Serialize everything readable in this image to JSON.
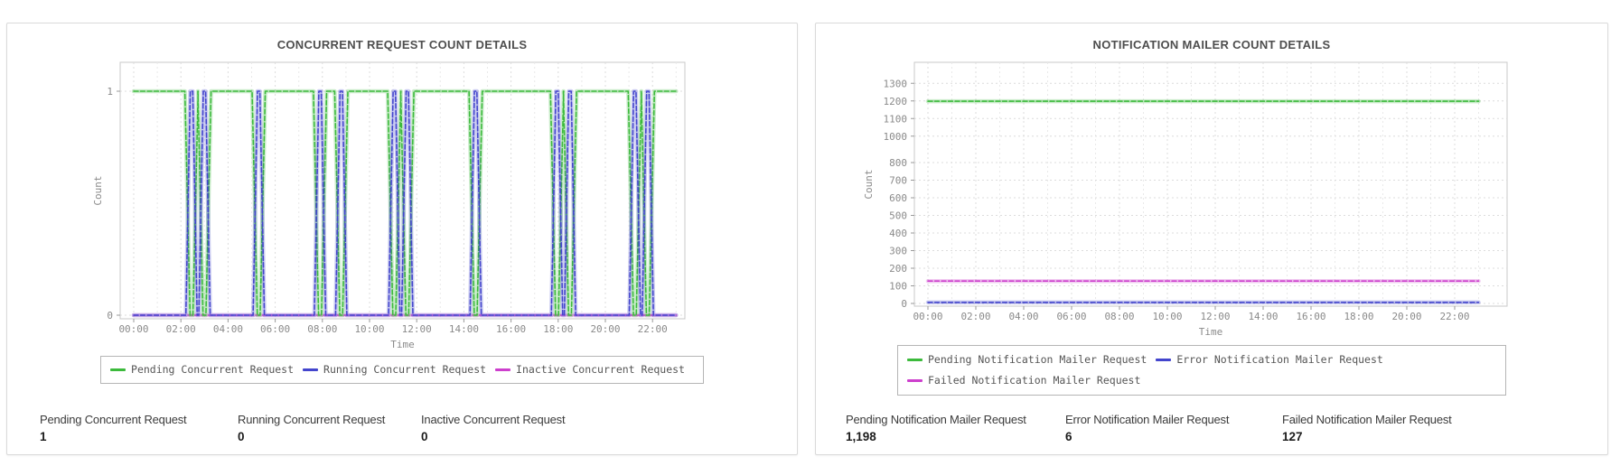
{
  "chart_data": [
    {
      "id": "concurrent",
      "type": "line",
      "title": "CONCURRENT REQUEST COUNT DETAILS",
      "xlabel": "Time",
      "ylabel": "Count",
      "x_tick_labels": [
        "00:00",
        "02:00",
        "04:00",
        "06:00",
        "08:00",
        "10:00",
        "12:00",
        "14:00",
        "16:00",
        "18:00",
        "20:00",
        "22:00"
      ],
      "x_domain_hours": [
        0,
        23
      ],
      "y_ticks": [
        0,
        1
      ],
      "y_domain": [
        0,
        1.15
      ],
      "grid": true,
      "legend_position": "bottom-center",
      "dip_event_hours": [
        2.45,
        3.0,
        5.3,
        7.9,
        8.8,
        11.05,
        11.6,
        14.5,
        17.95,
        18.5,
        21.25,
        21.8
      ],
      "series": [
        {
          "name": "Pending Concurrent Request",
          "color": "#3cba3c",
          "pattern": "baseline-high",
          "base_value": 1
        },
        {
          "name": "Running Concurrent Request",
          "color": "#4345cd",
          "pattern": "baseline-low-spikes",
          "base_value": 0
        },
        {
          "name": "Inactive Concurrent Request",
          "color": "#cd3fcd",
          "pattern": "flat",
          "value": 0
        }
      ],
      "legend_rows": [
        [
          0,
          1,
          2
        ]
      ],
      "stats": [
        {
          "label": "Pending Concurrent Request",
          "value": "1"
        },
        {
          "label": "Running Concurrent Request",
          "value": "0"
        },
        {
          "label": "Inactive Concurrent Request",
          "value": "0"
        }
      ]
    },
    {
      "id": "mailer",
      "type": "line",
      "title": "NOTIFICATION MAILER COUNT DETAILS",
      "xlabel": "Time",
      "ylabel": "Count",
      "x_tick_labels": [
        "00:00",
        "02:00",
        "04:00",
        "06:00",
        "08:00",
        "10:00",
        "12:00",
        "14:00",
        "16:00",
        "18:00",
        "20:00",
        "22:00"
      ],
      "x_domain_hours": [
        0,
        23
      ],
      "y_tick_values": [
        0,
        100,
        200,
        300,
        400,
        500,
        600,
        700,
        800,
        1000,
        1100,
        1200,
        1300
      ],
      "y_domain": [
        0,
        1380
      ],
      "grid": true,
      "legend_position": "bottom-left",
      "series": [
        {
          "name": "Pending Notification Mailer Request",
          "color": "#3cba3c",
          "pattern": "flat",
          "value": 1198
        },
        {
          "name": "Error Notification Mailer Request",
          "color": "#4345cd",
          "pattern": "flat",
          "value": 6
        },
        {
          "name": "Failed Notification Mailer Request",
          "color": "#cd3fcd",
          "pattern": "flat",
          "value": 127
        }
      ],
      "legend_rows": [
        [
          0,
          1
        ],
        [
          2
        ]
      ],
      "stats": [
        {
          "label": "Pending Notification Mailer Request",
          "value": "1,198"
        },
        {
          "label": "Error Notification Mailer Request",
          "value": "6"
        },
        {
          "label": "Failed Notification Mailer Request",
          "value": "127"
        }
      ]
    }
  ],
  "colors": {
    "pending_green": "#3cba3c",
    "running_error_blue": "#4345cd",
    "inactive_failed_magenta": "#cd3fcd",
    "grid_major": "#dcdcdc",
    "grid_minor": "#e9e9e9",
    "plot_border": "#c8c8c8",
    "tick_text": "#8a8a8a",
    "title_text": "#4e4e4e"
  }
}
